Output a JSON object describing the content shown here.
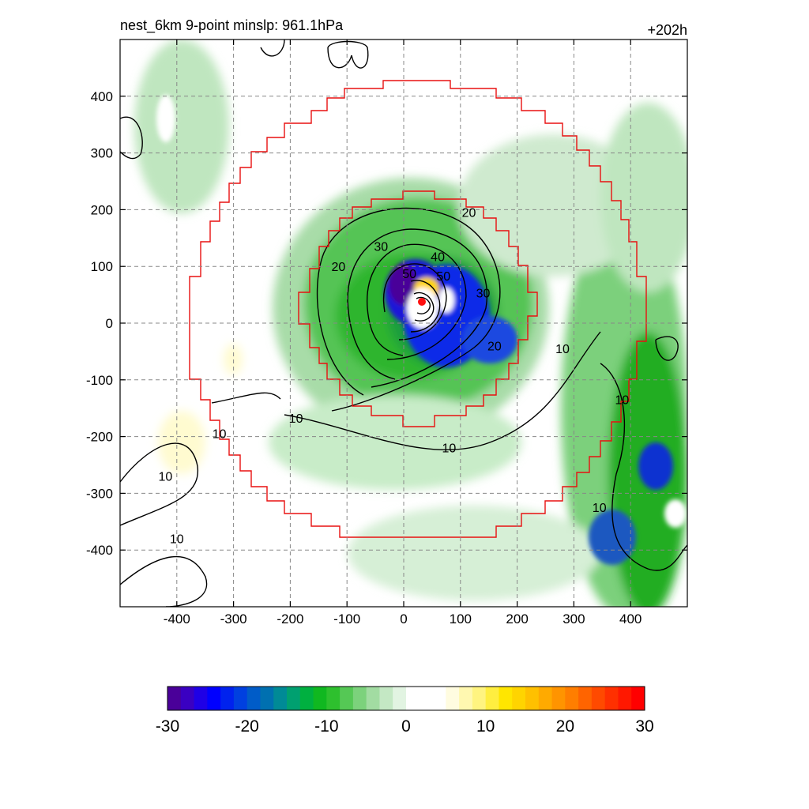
{
  "title_left": "nest_6km  9-point minslp: 961.1hPa",
  "title_right": "+202h",
  "chart_data": {
    "type": "heatmap",
    "x_ticks": [
      -400,
      -300,
      -200,
      -100,
      0,
      100,
      200,
      300,
      400
    ],
    "y_ticks": [
      400,
      300,
      200,
      100,
      0,
      -100,
      -200,
      -300,
      -400
    ],
    "xlim": [
      -500,
      500
    ],
    "ylim": [
      -500,
      500
    ],
    "grid": true,
    "colorbar": {
      "ticks": [
        -30,
        -20,
        -10,
        0,
        10,
        20,
        30
      ],
      "range": [
        -30,
        30
      ],
      "colors": [
        "#4a0099",
        "#3a00c2",
        "#1f00e6",
        "#0000ff",
        "#0022ee",
        "#0040e0",
        "#005cc8",
        "#0070b0",
        "#008a96",
        "#00a070",
        "#00b040",
        "#10b820",
        "#2ec02e",
        "#55c855",
        "#7cd27c",
        "#a2dca2",
        "#c4e8c4",
        "#e2f4e2",
        "#ffffff",
        "#ffffff",
        "#ffffff",
        "#fffce0",
        "#fff8b0",
        "#fff480",
        "#ffee40",
        "#ffe600",
        "#ffd400",
        "#ffc000",
        "#ffaa00",
        "#ff9400",
        "#ff7e00",
        "#ff6400",
        "#ff4a00",
        "#ff3000",
        "#ff1800",
        "#ff0000"
      ]
    },
    "contour_labels": [
      {
        "text": "10",
        "x": -190,
        "y": -173
      },
      {
        "text": "10",
        "x": 80,
        "y": -225
      },
      {
        "text": "10",
        "x": -325,
        "y": -200
      },
      {
        "text": "10",
        "x": -420,
        "y": -275
      },
      {
        "text": "10",
        "x": -400,
        "y": -385
      },
      {
        "text": "10",
        "x": 280,
        "y": -50
      },
      {
        "text": "10",
        "x": 385,
        "y": -140
      },
      {
        "text": "10",
        "x": 345,
        "y": -330
      },
      {
        "text": "20",
        "x": 115,
        "y": 190
      },
      {
        "text": "20",
        "x": -115,
        "y": 95
      },
      {
        "text": "20",
        "x": 160,
        "y": -45
      },
      {
        "text": "30",
        "x": -40,
        "y": 130
      },
      {
        "text": "30",
        "x": 140,
        "y": 48
      },
      {
        "text": "40",
        "x": 60,
        "y": 112
      },
      {
        "text": "50",
        "x": 70,
        "y": 78
      },
      {
        "text": "50",
        "x": 10,
        "y": 82
      }
    ],
    "min_slp_hPa": 961.1,
    "forecast_hour": "+202h"
  }
}
